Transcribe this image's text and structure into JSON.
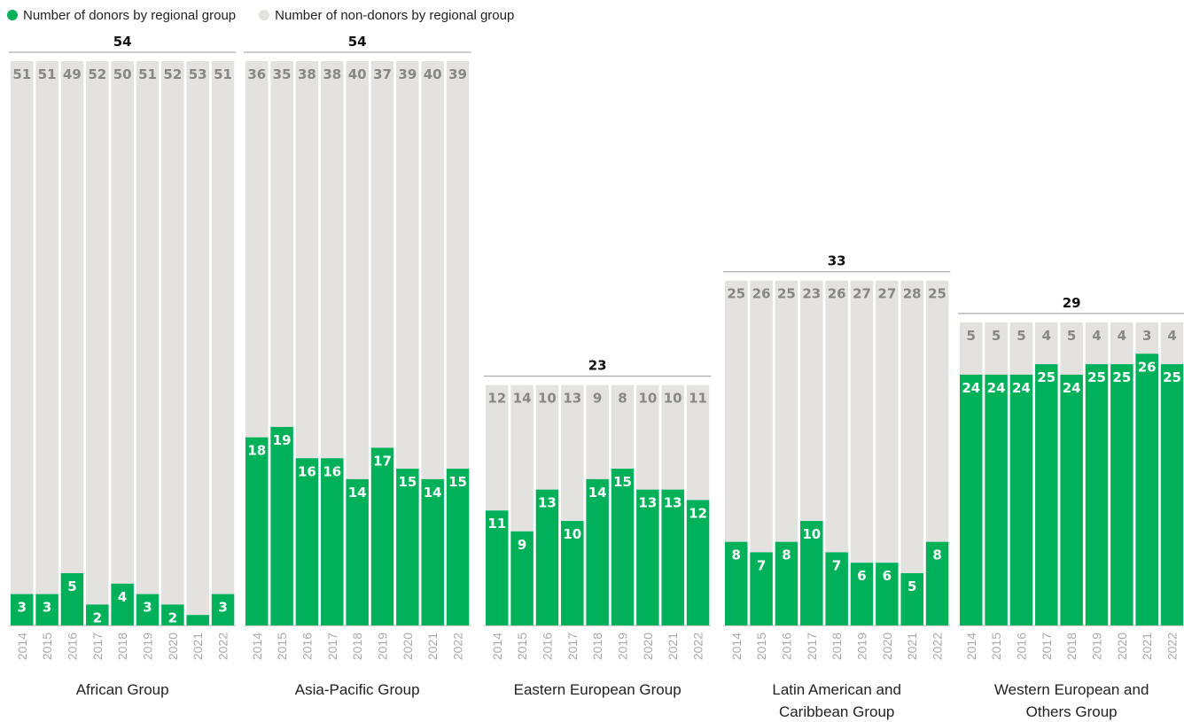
{
  "colors": {
    "donor": "#00b15a",
    "non_donor": "#e3e2de",
    "non_donor_label": "#878787",
    "total": "#111111",
    "axis": "#999999"
  },
  "legend": {
    "donors": "Number of donors by regional group",
    "non_donors": "Number of non-donors by regional group"
  },
  "chart_data": {
    "type": "bar",
    "stacked": true,
    "series_names": [
      "Number of donors by regional group",
      "Number of non-donors by regional group"
    ],
    "years": [
      "2014",
      "2015",
      "2016",
      "2017",
      "2018",
      "2019",
      "2020",
      "2021",
      "2022"
    ],
    "ylim": [
      0,
      56
    ],
    "groups": [
      {
        "name": [
          "African Group"
        ],
        "total": "54",
        "donors": [
          3,
          3,
          5,
          2,
          4,
          3,
          2,
          1,
          3
        ],
        "donor_labels": [
          "3",
          "3",
          "5",
          "2",
          "4",
          "3",
          "2",
          "",
          "3"
        ],
        "non_donors": [
          51,
          51,
          49,
          52,
          50,
          51,
          52,
          53,
          51
        ]
      },
      {
        "name": [
          "Asia-Pacific Group"
        ],
        "total": "54",
        "donors": [
          18,
          19,
          16,
          16,
          14,
          17,
          15,
          14,
          15
        ],
        "donor_labels": [
          "18",
          "19",
          "16",
          "16",
          "14",
          "17",
          "15",
          "14",
          "15"
        ],
        "non_donors": [
          36,
          35,
          38,
          38,
          40,
          37,
          39,
          40,
          39
        ]
      },
      {
        "name": [
          "Eastern European Group"
        ],
        "total": "23",
        "donors": [
          11,
          9,
          13,
          10,
          14,
          15,
          13,
          13,
          12
        ],
        "donor_labels": [
          "11",
          "9",
          "13",
          "10",
          "14",
          "15",
          "13",
          "13",
          "12"
        ],
        "non_donors": [
          12,
          14,
          10,
          13,
          9,
          8,
          10,
          10,
          11
        ]
      },
      {
        "name": [
          "Latin American and",
          "Caribbean Group"
        ],
        "total": "33",
        "donors": [
          8,
          7,
          8,
          10,
          7,
          6,
          6,
          5,
          8
        ],
        "donor_labels": [
          "8",
          "7",
          "8",
          "10",
          "7",
          "6",
          "6",
          "5",
          "8"
        ],
        "non_donors": [
          25,
          26,
          25,
          23,
          26,
          27,
          27,
          28,
          25
        ]
      },
      {
        "name": [
          "Western European and",
          "Others Group"
        ],
        "total": "29",
        "donors": [
          24,
          24,
          24,
          25,
          24,
          25,
          25,
          26,
          25
        ],
        "donor_labels": [
          "24",
          "24",
          "24",
          "25",
          "24",
          "25",
          "25",
          "26",
          "25"
        ],
        "non_donors": [
          5,
          5,
          5,
          4,
          5,
          4,
          4,
          3,
          4
        ]
      }
    ]
  }
}
